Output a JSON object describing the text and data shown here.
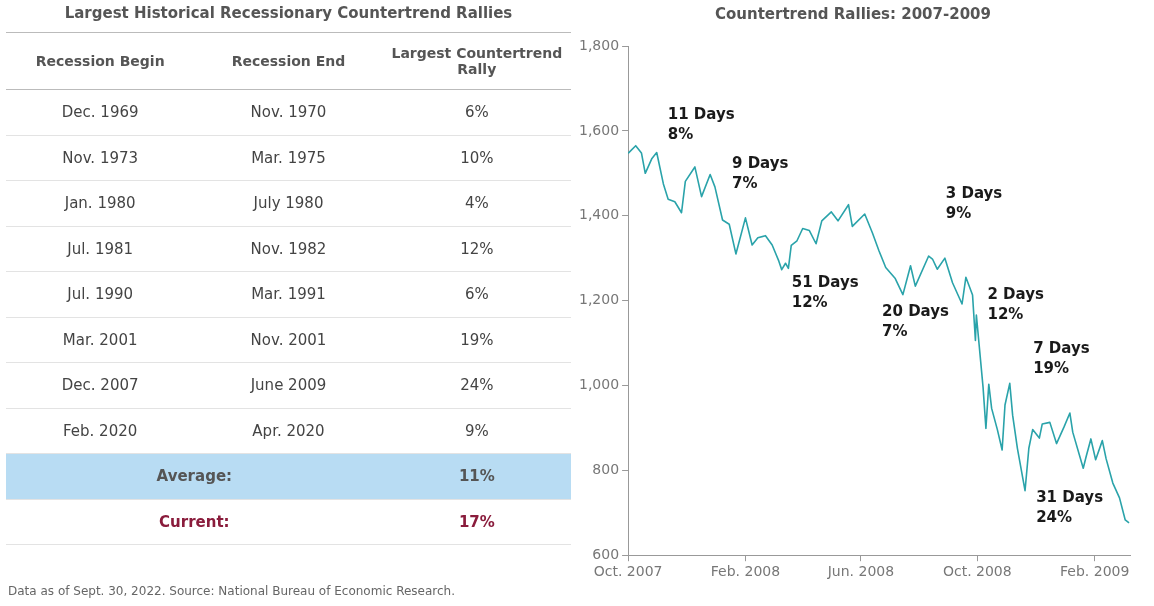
{
  "chart_data": [
    {
      "type": "other",
      "title": "Largest Historical Recessionary Countertrend Rallies",
      "categories": [
        "Recession Begin",
        "Recession End",
        "Largest Countertrend Rally"
      ],
      "cell_labels": [
        [
          "Dec. 1969",
          "Nov. 1970",
          "6%"
        ],
        [
          "Nov. 1973",
          "Mar. 1975",
          "10%"
        ],
        [
          "Jan. 1980",
          "July 1980",
          "4%"
        ],
        [
          "Jul. 1981",
          "Nov. 1982",
          "12%"
        ],
        [
          "Jul. 1990",
          "Mar. 1991",
          "6%"
        ],
        [
          "Mar. 2001",
          "Nov. 2001",
          "19%"
        ],
        [
          "Dec. 2007",
          "June 2009",
          "24%"
        ],
        [
          "Feb. 2020",
          "Apr. 2020",
          "9%"
        ],
        [
          "Average:",
          null,
          "11%"
        ],
        [
          "Current:",
          null,
          "17%"
        ]
      ],
      "annotations": [
        "Data as of Sept. 30, 2022. Source: National Bureau of Economic Research."
      ]
    },
    {
      "type": "line",
      "title": "Countertrend Rallies: 2007-2009",
      "x": [
        "2007-10-01",
        "2007-10-09",
        "2007-10-15",
        "2007-10-19",
        "2007-10-26",
        "2007-10-31",
        "2007-11-07",
        "2007-11-12",
        "2007-11-19",
        "2007-11-26",
        "2007-11-30",
        "2007-12-10",
        "2007-12-17",
        "2007-12-26",
        "2007-12-31",
        "2008-01-08",
        "2008-01-15",
        "2008-01-22",
        "2008-02-01",
        "2008-02-08",
        "2008-02-14",
        "2008-02-22",
        "2008-02-29",
        "2008-03-07",
        "2008-03-10",
        "2008-03-14",
        "2008-03-17",
        "2008-03-20",
        "2008-03-26",
        "2008-04-01",
        "2008-04-08",
        "2008-04-15",
        "2008-04-21",
        "2008-05-01",
        "2008-05-08",
        "2008-05-19",
        "2008-05-23",
        "2008-06-05",
        "2008-06-13",
        "2008-06-20",
        "2008-06-27",
        "2008-07-07",
        "2008-07-15",
        "2008-07-23",
        "2008-07-28",
        "2008-08-11",
        "2008-08-15",
        "2008-08-20",
        "2008-08-28",
        "2008-09-05",
        "2008-09-15",
        "2008-09-19",
        "2008-09-26",
        "2008-09-29",
        "2008-09-30",
        "2008-10-07",
        "2008-10-10",
        "2008-10-13",
        "2008-10-16",
        "2008-10-22",
        "2008-10-27",
        "2008-10-30",
        "2008-11-04",
        "2008-11-07",
        "2008-11-12",
        "2008-11-20",
        "2008-11-24",
        "2008-11-28",
        "2008-12-05",
        "2008-12-08",
        "2008-12-16",
        "2008-12-23",
        "2008-12-31",
        "2009-01-06",
        "2009-01-09",
        "2009-01-20",
        "2009-01-23",
        "2009-01-28",
        "2009-02-02",
        "2009-02-09",
        "2009-02-13",
        "2009-02-20",
        "2009-02-27",
        "2009-03-05",
        "2009-03-09"
      ],
      "series": [
        {
          "color": "#2aa3aa",
          "values": [
            1547,
            1565,
            1548,
            1500,
            1535,
            1549,
            1475,
            1439,
            1433,
            1407,
            1481,
            1515,
            1445,
            1497,
            1468,
            1390,
            1380,
            1310,
            1395,
            1331,
            1348,
            1353,
            1331,
            1293,
            1273,
            1288,
            1276,
            1330,
            1341,
            1370,
            1365,
            1334,
            1388,
            1409,
            1388,
            1426,
            1375,
            1404,
            1360,
            1317,
            1278,
            1252,
            1214,
            1282,
            1234,
            1305,
            1298,
            1274,
            1300,
            1242,
            1192,
            1255,
            1213,
            1106,
            1166,
            996,
            899,
            1003,
            946,
            896,
            848,
            954,
            1005,
            930,
            852,
            752,
            852,
            896,
            876,
            909,
            913,
            863,
            903,
            935,
            890,
            805,
            832,
            874,
            825,
            870,
            827,
            770,
            735,
            683,
            676
          ]
        }
      ],
      "xlim": [
        "2007-10-01",
        "2009-03-10"
      ],
      "xticks": [
        {
          "value": "2007-10-01",
          "label": "Oct. 2007"
        },
        {
          "value": "2008-02-01",
          "label": "Feb. 2008"
        },
        {
          "value": "2008-06-01",
          "label": "Jun. 2008"
        },
        {
          "value": "2008-10-01",
          "label": "Oct. 2008"
        },
        {
          "value": "2009-02-01",
          "label": "Feb. 2009"
        }
      ],
      "ylim": [
        600,
        1800
      ],
      "yticks": [
        600,
        800,
        {
          "value": 1000,
          "label": "1,000"
        },
        {
          "value": 1200,
          "label": "1,200"
        },
        {
          "value": 1400,
          "label": "1,400"
        },
        {
          "value": 1600,
          "label": "1,600"
        },
        {
          "value": 1800,
          "label": "1,800"
        }
      ],
      "grid": false,
      "legend": false,
      "marker": "none",
      "line_style": "solid",
      "annotations": [
        "11 Days\n8%",
        "9 Days\n7%",
        "51 Days\n12%",
        "20 Days\n7%",
        "3 Days\n9%",
        "2 Days\n12%",
        "7 Days\n19%",
        "31 Days\n24%"
      ]
    }
  ]
}
